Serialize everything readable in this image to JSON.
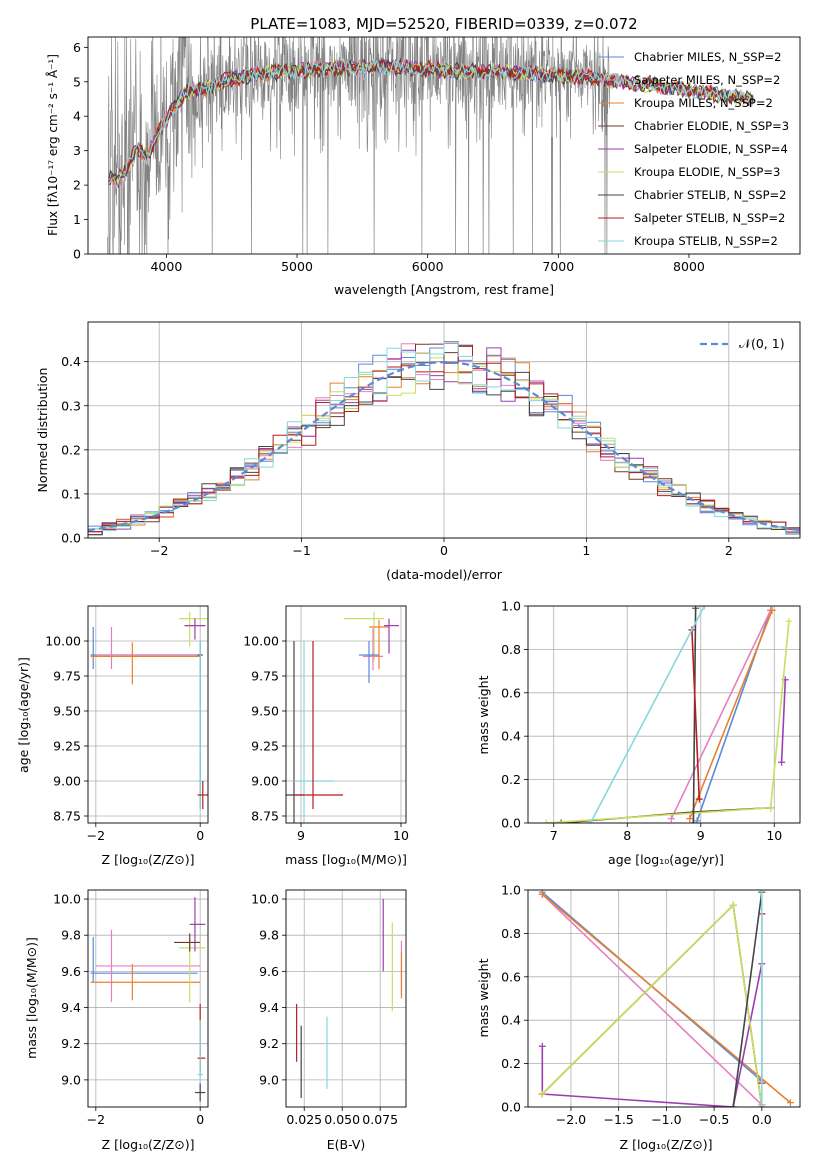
{
  "figure": {
    "title": "PLATE=1083, MJD=52520, FIBERID=0339, z=0.072"
  },
  "colors": {
    "chabrier_miles": "#5a8ad8",
    "salpeter_miles": "#e67fbf",
    "kroupa_miles": "#e8812e",
    "chabrier_elodie": "#6e3b2b",
    "salpeter_elodie": "#9b3fb0",
    "kroupa_elodie": "#c6e060",
    "chabrier_stelib": "#454545",
    "salpeter_stelib": "#b51f1f",
    "kroupa_stelib": "#86d8dc",
    "data": "#808080",
    "normal": "#5a8ad8",
    "grid": "#b0b0b0"
  },
  "chart_data": [
    {
      "id": "spectrum",
      "type": "line",
      "xlabel": "wavelength [Angstrom, rest frame]",
      "ylabel": "Flux [fλ10⁻¹⁷ erg cm⁻² s⁻¹ Å⁻¹]",
      "xlim": [
        3400,
        8850
      ],
      "ylim": [
        0,
        6.3
      ],
      "xticks": [
        4000,
        5000,
        6000,
        7000,
        8000
      ],
      "yticks": [
        0,
        1,
        2,
        3,
        4,
        5,
        6
      ],
      "grid": false,
      "legend_position": "top-right",
      "legend": [
        "Chabrier MILES, N$_{SSP}$=2",
        "Salpeter MILES, N$_{SSP}$=2",
        "Kroupa MILES, N$_{SSP}$=2",
        "Chabrier ELODIE, N$_{SSP}$=3",
        "Salpeter ELODIE, N$_{SSP}$=4",
        "Kroupa ELODIE, N$_{SSP}$=3",
        "Chabrier STELIB, N$_{SSP}$=2",
        "Salpeter STELIB, N$_{SSP}$=2",
        "Kroupa STELIB, N$_{SSP}$=2"
      ],
      "legend_display": [
        "Chabrier MILES, N_SSP=2",
        "Salpeter MILES, N_SSP=2",
        "Kroupa MILES, N_SSP=2",
        "Chabrier ELODIE, N_SSP=3",
        "Salpeter ELODIE, N_SSP=4",
        "Kroupa ELODIE, N_SSP=3",
        "Chabrier STELIB, N_SSP=2",
        "Salpeter STELIB, N_SSP=2",
        "Kroupa STELIB, N_SSP=2"
      ],
      "continuum": {
        "x": [
          3550,
          3620,
          3700,
          3780,
          3850,
          3950,
          4050,
          4150,
          4300,
          4500,
          4700,
          4900,
          5100,
          5300,
          5500,
          5700,
          5900,
          6100,
          6300,
          6500,
          6700,
          6900,
          7100,
          7300,
          7500,
          7700,
          7900,
          8100,
          8300,
          8500
        ],
        "y": [
          2.3,
          2.1,
          2.5,
          3.1,
          2.8,
          3.6,
          4.2,
          4.7,
          4.8,
          5.1,
          5.2,
          5.3,
          5.35,
          5.4,
          5.4,
          5.45,
          5.4,
          5.35,
          5.3,
          5.3,
          5.25,
          5.2,
          5.15,
          5.1,
          5.0,
          4.9,
          4.8,
          4.7,
          4.6,
          4.5
        ]
      },
      "data_range": [
        3550,
        7400
      ]
    },
    {
      "id": "residuals",
      "type": "line",
      "xlabel": "(data-model)/error",
      "ylabel": "Normed distribution",
      "xlim": [
        -2.5,
        2.5
      ],
      "ylim": [
        0,
        0.49
      ],
      "xticks": [
        -2,
        -1,
        0,
        1,
        2
      ],
      "yticks": [
        0.0,
        0.1,
        0.2,
        0.3,
        0.4
      ],
      "grid": true,
      "legend_position": "top-right",
      "normal_label": "𝒩(0, 1)",
      "bin_width": 0.1
    },
    {
      "id": "age-vs-Z",
      "type": "scatter",
      "xlabel": "Z [log₁₀(Z/Z⊙)]",
      "ylabel": "age  [log₁₀(age/yr)]",
      "xlim": [
        -2.15,
        0.15
      ],
      "ylim": [
        8.7,
        10.25
      ],
      "xticks": [
        -2,
        0
      ],
      "yticks": [
        8.75,
        9.0,
        9.25,
        9.5,
        9.75,
        10.0
      ],
      "grid": true,
      "points": [
        {
          "model": "chabrier_miles",
          "x": -2.05,
          "y": 9.9,
          "xerr": [
            0.05,
            2.0
          ],
          "yerr": [
            0.1,
            0.2
          ]
        },
        {
          "model": "salpeter_miles",
          "x": -1.7,
          "y": 9.9,
          "xerr": [
            0.3,
            1.7
          ],
          "yerr": [
            0.1,
            0.2
          ]
        },
        {
          "model": "kroupa_miles",
          "x": -1.3,
          "y": 9.89,
          "xerr": [
            0.8,
            1.3
          ],
          "yerr": [
            0.2,
            0.1
          ]
        },
        {
          "model": "kroupa_elodie",
          "x": -0.2,
          "y": 10.16,
          "xerr": [
            0.2,
            0.5
          ],
          "yerr": [
            0.2,
            0.05
          ]
        },
        {
          "model": "salpeter_elodie",
          "x": -0.1,
          "y": 10.11,
          "xerr": [
            0.2,
            0.2
          ],
          "yerr": [
            0.1,
            0.05
          ]
        },
        {
          "model": "chabrier_stelib",
          "x": 0.0,
          "y": 9.9,
          "xerr": [
            0.05,
            0.05
          ],
          "yerr": [
            1.1,
            0.1
          ]
        },
        {
          "model": "kroupa_stelib",
          "x": 0.0,
          "y": 9.0,
          "xerr": [
            0.05,
            0.05
          ],
          "yerr": [
            0.2,
            1.0
          ]
        },
        {
          "model": "salpeter_stelib",
          "x": 0.05,
          "y": 8.9,
          "xerr": [
            0.1,
            0.1
          ],
          "yerr": [
            0.1,
            0.1
          ]
        }
      ]
    },
    {
      "id": "age-vs-mass",
      "type": "scatter",
      "xlabel": "mass [log₁₀(M/M⊙)]",
      "ylabel": "",
      "xlim": [
        8.85,
        10.05
      ],
      "ylim": [
        8.7,
        10.25
      ],
      "xticks": [
        9,
        10
      ],
      "yticks": [
        8.75,
        9.0,
        9.25,
        9.5,
        9.75,
        10.0
      ],
      "grid": true,
      "points": [
        {
          "model": "chabrier_stelib",
          "x": 8.93,
          "y": 8.9,
          "xerr": [
            0.1,
            0.1
          ],
          "yerr": [
            0.2,
            1.1
          ]
        },
        {
          "model": "kroupa_stelib",
          "x": 9.03,
          "y": 9.0,
          "xerr": [
            0.1,
            0.3
          ],
          "yerr": [
            0.9,
            1.0
          ]
        },
        {
          "model": "salpeter_stelib",
          "x": 9.12,
          "y": 8.9,
          "xerr": [
            0.2,
            0.3
          ],
          "yerr": [
            0.1,
            1.1
          ]
        },
        {
          "model": "kroupa_elodie",
          "x": 9.73,
          "y": 10.16,
          "xerr": [
            0.3,
            0.1
          ],
          "yerr": [
            0.3,
            0.05
          ]
        },
        {
          "model": "salpeter_miles",
          "x": 9.72,
          "y": 9.89,
          "xerr": [
            0.1,
            0.1
          ],
          "yerr": [
            0.1,
            0.2
          ]
        },
        {
          "model": "chabrier_miles",
          "x": 9.68,
          "y": 9.9,
          "xerr": [
            0.1,
            0.1
          ],
          "yerr": [
            0.2,
            0.1
          ]
        },
        {
          "model": "kroupa_miles",
          "x": 9.78,
          "y": 10.1,
          "xerr": [
            0.1,
            0.1
          ],
          "yerr": [
            0.3,
            0.05
          ]
        },
        {
          "model": "salpeter_elodie",
          "x": 9.88,
          "y": 10.11,
          "xerr": [
            0.05,
            0.1
          ],
          "yerr": [
            0.2,
            0.05
          ]
        }
      ]
    },
    {
      "id": "mass-weight-vs-age",
      "type": "line",
      "xlabel": "age  [log₁₀(age/yr)]",
      "ylabel": "mass weight",
      "xlim": [
        6.65,
        10.35
      ],
      "ylim": [
        0,
        1.0
      ],
      "xticks": [
        7,
        8,
        9,
        10
      ],
      "yticks": [
        0.0,
        0.2,
        0.4,
        0.6,
        0.8,
        1.0
      ],
      "grid": true,
      "series": [
        {
          "model": "chabrier_miles",
          "x": [
            8.95,
            9.95
          ],
          "y": [
            0.01,
            0.98
          ]
        },
        {
          "model": "salpeter_miles",
          "x": [
            8.6,
            9.95
          ],
          "y": [
            0.02,
            0.98
          ]
        },
        {
          "model": "kroupa_miles",
          "x": [
            8.85,
            9.97
          ],
          "y": [
            0.02,
            0.98
          ]
        },
        {
          "model": "chabrier_elodie",
          "x": [
            7.1,
            8.9,
            9.95
          ],
          "y": [
            0.0,
            0.05,
            0.07
          ]
        },
        {
          "model": "salpeter_elodie",
          "x": [
            10.1,
            10.15
          ],
          "y": [
            0.28,
            0.66
          ]
        },
        {
          "model": "kroupa_elodie",
          "x": [
            6.9,
            9.95,
            10.2
          ],
          "y": [
            0.0,
            0.07,
            0.93
          ]
        },
        {
          "model": "chabrier_stelib",
          "x": [
            8.9,
            8.93
          ],
          "y": [
            0.0,
            0.99
          ]
        },
        {
          "model": "salpeter_stelib",
          "x": [
            8.88,
            8.98
          ],
          "y": [
            0.89,
            0.11
          ]
        },
        {
          "model": "kroupa_stelib",
          "x": [
            7.5,
            9.05
          ],
          "y": [
            0.0,
            1.0
          ]
        }
      ]
    },
    {
      "id": "mass-vs-Z",
      "type": "scatter",
      "xlabel": "Z [log₁₀(Z/Z⊙)]",
      "ylabel": "mass [log₁₀(M/M⊙)]",
      "xlim": [
        -2.15,
        0.15
      ],
      "ylim": [
        8.85,
        10.05
      ],
      "xticks": [
        -2,
        0
      ],
      "yticks": [
        9.0,
        9.2,
        9.4,
        9.6,
        9.8,
        10.0
      ],
      "grid": true,
      "points": [
        {
          "model": "chabrier_miles",
          "x": -2.05,
          "y": 9.59,
          "xerr": [
            0.05,
            2.0
          ],
          "yerr": [
            0.05,
            0.2
          ]
        },
        {
          "model": "salpeter_miles",
          "x": -1.7,
          "y": 9.63,
          "xerr": [
            0.3,
            1.7
          ],
          "yerr": [
            0.2,
            0.2
          ]
        },
        {
          "model": "kroupa_miles",
          "x": -1.3,
          "y": 9.54,
          "xerr": [
            0.8,
            1.3
          ],
          "yerr": [
            0.1,
            0.1
          ]
        },
        {
          "model": "kroupa_elodie",
          "x": -0.2,
          "y": 9.73,
          "xerr": [
            0.2,
            0.3
          ],
          "yerr": [
            0.3,
            0.05
          ]
        },
        {
          "model": "salpeter_elodie",
          "x": -0.1,
          "y": 9.86,
          "xerr": [
            0.1,
            0.2
          ],
          "yerr": [
            0.15,
            0.15
          ]
        },
        {
          "model": "chabrier_elodie",
          "x": -0.2,
          "y": 9.76,
          "xerr": [
            0.3,
            0.2
          ],
          "yerr": [
            0.05,
            0.05
          ]
        },
        {
          "model": "chabrier_stelib",
          "x": 0.0,
          "y": 8.93,
          "xerr": [
            0.1,
            0.1
          ],
          "yerr": [
            0.05,
            0.05
          ]
        },
        {
          "model": "salpeter_stelib",
          "x": 0.0,
          "y": 9.12,
          "xerr": [
            0.05,
            0.1
          ],
          "yerr": [
            0.1,
            0.3
          ]
        },
        {
          "model": "kroupa_stelib",
          "x": 0.0,
          "y": 9.03,
          "xerr": [
            0.05,
            0.05
          ],
          "yerr": [
            0.05,
            0.3
          ]
        }
      ]
    },
    {
      "id": "mass-vs-EBV",
      "type": "scatter",
      "xlabel": "E(B-V)",
      "ylabel": "",
      "xlim": [
        0.013,
        0.092
      ],
      "ylim": [
        8.85,
        10.05
      ],
      "xticks": [
        0.025,
        0.05,
        0.075
      ],
      "xtick_labels": [
        "0.025",
        "0.050",
        "0.075"
      ],
      "yticks": [
        9.0,
        9.2,
        9.4,
        9.6,
        9.8,
        10.0
      ],
      "grid": true,
      "points": [
        {
          "model": "salpeter_stelib",
          "x": 0.02,
          "y": 9.26,
          "yerr": [
            0.16,
            0.16
          ]
        },
        {
          "model": "chabrier_stelib",
          "x": 0.023,
          "y": 9.1,
          "yerr": [
            0.2,
            0.2
          ]
        },
        {
          "model": "kroupa_stelib",
          "x": 0.04,
          "y": 9.15,
          "yerr": [
            0.2,
            0.2
          ]
        },
        {
          "model": "salpeter_elodie",
          "x": 0.077,
          "y": 9.8,
          "yerr": [
            0.2,
            0.2
          ]
        },
        {
          "model": "kroupa_elodie",
          "x": 0.083,
          "y": 9.55,
          "yerr": [
            0.17,
            0.32
          ]
        },
        {
          "model": "salpeter_miles",
          "x": 0.089,
          "y": 9.62,
          "yerr": [
            0.15,
            0.15
          ]
        },
        {
          "model": "kroupa_miles",
          "x": 0.089,
          "y": 9.58,
          "yerr": [
            0.13,
            0.13
          ]
        }
      ]
    },
    {
      "id": "mass-weight-vs-Z",
      "type": "line",
      "xlabel": "Z [log₁₀(Z/Z⊙)]",
      "ylabel": "mass weight",
      "xlim": [
        -2.45,
        0.4
      ],
      "ylim": [
        0,
        1.0
      ],
      "xticks": [
        -2.0,
        -1.5,
        -1.0,
        -0.5,
        0.0
      ],
      "xtick_labels": [
        "−2.0",
        "−1.5",
        "−1.0",
        "−0.5",
        "0.0"
      ],
      "yticks": [
        0.0,
        0.2,
        0.4,
        0.6,
        0.8,
        1.0
      ],
      "grid": true,
      "series": [
        {
          "model": "chabrier_miles",
          "x": [
            -2.3,
            0.0
          ],
          "y": [
            0.99,
            0.12
          ]
        },
        {
          "model": "salpeter_miles",
          "x": [
            -2.3,
            0.0
          ],
          "y": [
            0.98,
            0.01
          ]
        },
        {
          "model": "kroupa_miles",
          "x": [
            -2.3,
            0.3
          ],
          "y": [
            0.98,
            0.02
          ]
        },
        {
          "model": "chabrier_elodie",
          "x": [
            -2.3,
            -0.3,
            0.0
          ],
          "y": [
            0.06,
            0.93,
            0.0
          ]
        },
        {
          "model": "salpeter_elodie",
          "x": [
            -2.3,
            -2.3,
            -0.3,
            0.0
          ],
          "y": [
            0.28,
            0.06,
            0.0,
            0.66
          ]
        },
        {
          "model": "kroupa_elodie",
          "x": [
            -2.3,
            -0.3,
            -0.3,
            0.0
          ],
          "y": [
            0.06,
            0.93,
            0.93,
            0.0
          ]
        },
        {
          "model": "chabrier_stelib",
          "x": [
            -0.3,
            0.0
          ],
          "y": [
            0.0,
            0.99
          ]
        },
        {
          "model": "salpeter_stelib",
          "x": [
            0.0,
            0.0
          ],
          "y": [
            0.89,
            0.11
          ]
        },
        {
          "model": "kroupa_stelib",
          "x": [
            0.0,
            0.0
          ],
          "y": [
            0.0,
            1.0
          ]
        }
      ]
    }
  ]
}
